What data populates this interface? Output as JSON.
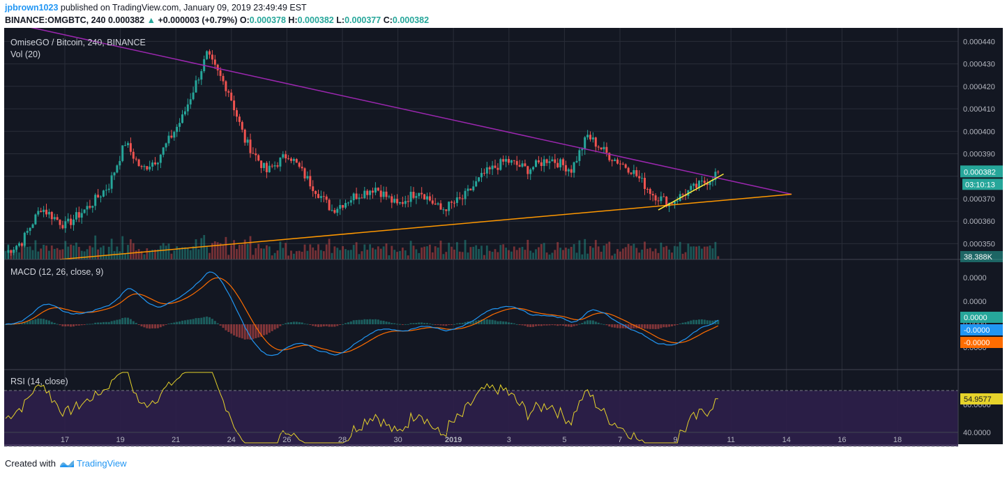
{
  "header": {
    "user": "jpbrown1023",
    "published_text": "published on TradingView.com, January 09, 2019 23:49:49 EST",
    "symbol": "BINANCE:OMGBTC, 240",
    "last": "0.000382",
    "change_arrow": "▲",
    "change": "+0.000003 (+0.79%)",
    "o_label": "O:",
    "o_value": "0.000378",
    "h_label": "H:",
    "h_value": "0.000382",
    "l_label": "L:",
    "l_value": "0.000377",
    "c_label": "C:",
    "c_value": "0.000382"
  },
  "footer": {
    "created_with": "Created with",
    "brand": "TradingView",
    "logo_icon": "tradingview-logo-icon"
  },
  "colors": {
    "background": "#131722",
    "grid": "#2a2e39",
    "up": "#26a69a",
    "down": "#ef5350",
    "macd_line": "#2196f3",
    "signal_line": "#ff6d00",
    "rsi_line": "#e6d32b",
    "rsi_band": "#2e1f4a",
    "trend_upper": "#9c27b0",
    "trend_lower": "#ff9800",
    "trend_short": "#ffeb3b",
    "last_price_tag": "#26a69a"
  },
  "chart_data": [
    {
      "type": "candlestick",
      "title": "OmiseGO / Bitcoin, 240, BINANCE",
      "volume_label": "Vol (20)",
      "x_tick_labels": [
        "17",
        "19",
        "21",
        "24",
        "26",
        "28",
        "30",
        "2019",
        "3",
        "5",
        "7",
        "9",
        "11",
        "14",
        "16",
        "18"
      ],
      "y_tick_labels": [
        "0.000440",
        "0.000430",
        "0.000420",
        "0.000410",
        "0.000400",
        "0.000390",
        "0.000370",
        "0.000360",
        "0.000350"
      ],
      "ylim": [
        0.000343,
        0.000446
      ],
      "last_price_label": "0.000382",
      "countdown_label": "03:10:13",
      "volume_last_label": "38.388K",
      "anchors": [
        [
          0,
          0.000346
        ],
        [
          6,
          0.000351
        ],
        [
          13,
          0.000366
        ],
        [
          22,
          0.000358
        ],
        [
          31,
          0.000367
        ],
        [
          38,
          0.000376
        ],
        [
          44,
          0.000395
        ],
        [
          50,
          0.000383
        ],
        [
          56,
          0.000388
        ],
        [
          65,
          0.000406
        ],
        [
          74,
          0.000434
        ],
        [
          82,
          0.000418
        ],
        [
          88,
          0.000396
        ],
        [
          96,
          0.000382
        ],
        [
          104,
          0.00039
        ],
        [
          112,
          0.000377
        ],
        [
          120,
          0.000365
        ],
        [
          128,
          0.000371
        ],
        [
          136,
          0.000375
        ],
        [
          144,
          0.000367
        ],
        [
          152,
          0.000374
        ],
        [
          160,
          0.000365
        ],
        [
          168,
          0.00037
        ],
        [
          176,
          0.000381
        ],
        [
          184,
          0.000387
        ],
        [
          192,
          0.000383
        ],
        [
          200,
          0.000388
        ],
        [
          208,
          0.000383
        ],
        [
          214,
          0.000398
        ],
        [
          222,
          0.000389
        ],
        [
          230,
          0.000383
        ],
        [
          238,
          0.000372
        ],
        [
          244,
          0.000368
        ],
        [
          252,
          0.000374
        ],
        [
          258,
          0.000378
        ],
        [
          262,
          0.000382
        ]
      ],
      "volume_range": [
        0,
        100
      ],
      "trendlines": [
        {
          "name": "descending-resistance",
          "from": [
            -5,
            0.00045
          ],
          "to": [
            289,
            0.000372
          ]
        },
        {
          "name": "ascending-support",
          "from": [
            20,
            0.000343
          ],
          "to": [
            289,
            0.000372
          ]
        },
        {
          "name": "short-term-support",
          "from": [
            240,
            0.000365
          ],
          "to": [
            264,
            0.000381
          ]
        }
      ]
    },
    {
      "type": "line",
      "title": "MACD (12, 26, close, 9)",
      "series": [
        {
          "name": "MACD"
        },
        {
          "name": "Signal"
        },
        {
          "name": "Histogram"
        }
      ],
      "y_tick_labels": [
        "0.0000",
        "0.0000",
        "0.0000",
        "0.0000"
      ],
      "last_labels": [
        "0.0000",
        "-0.0000",
        "-0.0000"
      ]
    },
    {
      "type": "line",
      "title": "RSI (14, close)",
      "y_tick_labels": [
        "60.0000",
        "40.0000"
      ],
      "band": [
        30,
        70
      ],
      "last_label": "54.9577"
    }
  ]
}
